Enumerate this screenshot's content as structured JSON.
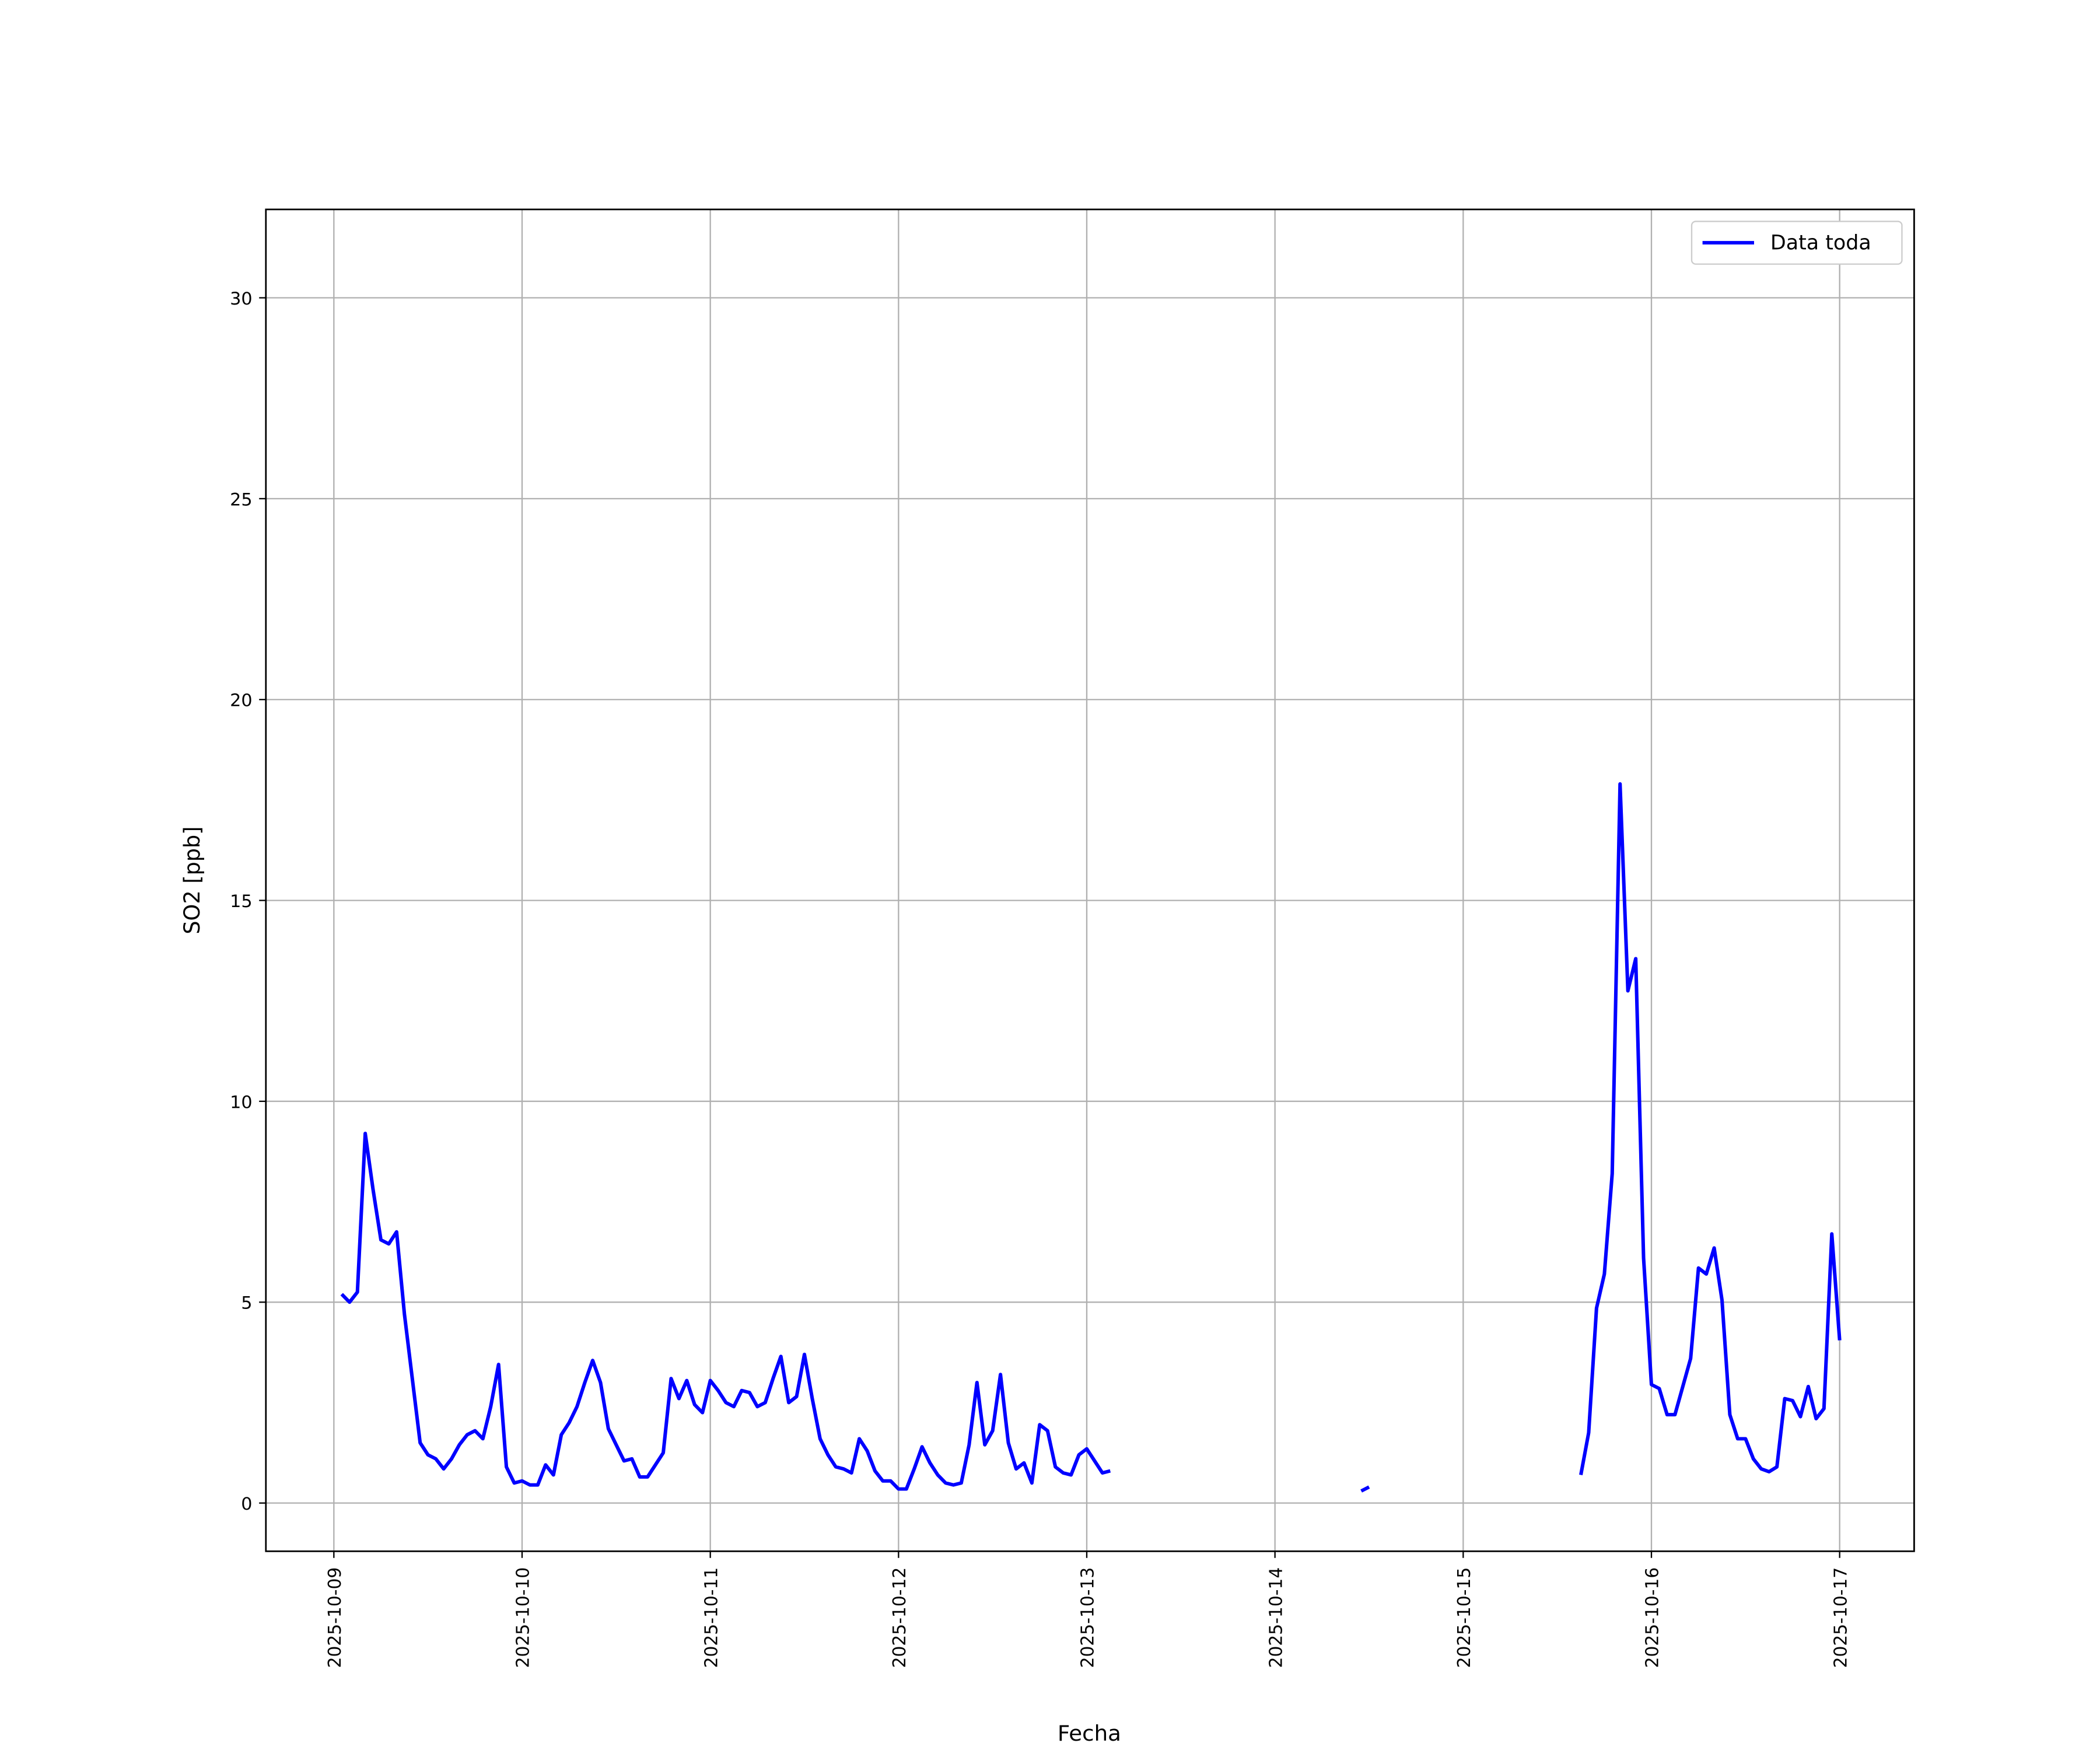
{
  "chart_data": {
    "type": "line",
    "xlabel": "Fecha",
    "ylabel": "SO2 [ppb]",
    "x": [
      "2025-10-09 01:00",
      "2025-10-09 02:00",
      "2025-10-09 03:00",
      "2025-10-09 04:00",
      "2025-10-09 05:00",
      "2025-10-09 06:00",
      "2025-10-09 07:00",
      "2025-10-09 08:00",
      "2025-10-09 09:00",
      "2025-10-09 10:00",
      "2025-10-09 11:00",
      "2025-10-09 12:00",
      "2025-10-09 13:00",
      "2025-10-09 14:00",
      "2025-10-09 15:00",
      "2025-10-09 16:00",
      "2025-10-09 17:00",
      "2025-10-09 18:00",
      "2025-10-09 19:00",
      "2025-10-09 20:00",
      "2025-10-09 21:00",
      "2025-10-09 22:00",
      "2025-10-09 23:00",
      "2025-10-10 00:00",
      "2025-10-10 01:00",
      "2025-10-10 02:00",
      "2025-10-10 03:00",
      "2025-10-10 04:00",
      "2025-10-10 05:00",
      "2025-10-10 06:00",
      "2025-10-10 07:00",
      "2025-10-10 08:00",
      "2025-10-10 09:00",
      "2025-10-10 10:00",
      "2025-10-10 11:00",
      "2025-10-10 12:00",
      "2025-10-10 13:00",
      "2025-10-10 14:00",
      "2025-10-10 15:00",
      "2025-10-10 16:00",
      "2025-10-10 17:00",
      "2025-10-10 18:00",
      "2025-10-10 19:00",
      "2025-10-10 20:00",
      "2025-10-10 21:00",
      "2025-10-10 22:00",
      "2025-10-10 23:00",
      "2025-10-11 00:00",
      "2025-10-11 01:00",
      "2025-10-11 02:00",
      "2025-10-11 03:00",
      "2025-10-11 04:00",
      "2025-10-11 05:00",
      "2025-10-11 06:00",
      "2025-10-11 07:00",
      "2025-10-11 08:00",
      "2025-10-11 09:00",
      "2025-10-11 10:00",
      "2025-10-11 11:00",
      "2025-10-11 12:00",
      "2025-10-11 13:00",
      "2025-10-11 14:00",
      "2025-10-11 15:00",
      "2025-10-11 16:00",
      "2025-10-11 17:00",
      "2025-10-11 18:00",
      "2025-10-11 19:00",
      "2025-10-11 20:00",
      "2025-10-11 21:00",
      "2025-10-11 22:00",
      "2025-10-11 23:00",
      "2025-10-12 00:00",
      "2025-10-12 01:00",
      "2025-10-12 02:00",
      "2025-10-12 03:00",
      "2025-10-12 04:00",
      "2025-10-12 05:00",
      "2025-10-12 06:00",
      "2025-10-12 07:00",
      "2025-10-12 08:00",
      "2025-10-12 09:00",
      "2025-10-12 10:00",
      "2025-10-12 11:00",
      "2025-10-12 12:00",
      "2025-10-12 13:00",
      "2025-10-12 14:00",
      "2025-10-12 15:00",
      "2025-10-12 16:00",
      "2025-10-12 17:00",
      "2025-10-12 18:00",
      "2025-10-12 19:00",
      "2025-10-12 20:00",
      "2025-10-12 21:00",
      "2025-10-12 22:00",
      "2025-10-12 23:00",
      "2025-10-13 00:00",
      "2025-10-13 01:00",
      "2025-10-13 02:00",
      "2025-10-13 03:00",
      "2025-10-14 00:00",
      "2025-10-14 11:00",
      "2025-10-14 12:00",
      "2025-10-15 00:00",
      "2025-10-15 15:00",
      "2025-10-15 16:00",
      "2025-10-15 17:00",
      "2025-10-15 18:00",
      "2025-10-15 19:00",
      "2025-10-15 20:00",
      "2025-10-15 21:00",
      "2025-10-15 22:00",
      "2025-10-15 23:00",
      "2025-10-16 00:00",
      "2025-10-16 01:00",
      "2025-10-16 02:00",
      "2025-10-16 03:00",
      "2025-10-16 04:00",
      "2025-10-16 05:00",
      "2025-10-16 06:00",
      "2025-10-16 07:00",
      "2025-10-16 08:00",
      "2025-10-16 09:00",
      "2025-10-16 10:00",
      "2025-10-16 11:00",
      "2025-10-16 12:00",
      "2025-10-16 13:00",
      "2025-10-16 14:00",
      "2025-10-16 15:00",
      "2025-10-16 16:00",
      "2025-10-16 17:00",
      "2025-10-16 18:00",
      "2025-10-16 19:00",
      "2025-10-16 20:00",
      "2025-10-16 21:00",
      "2025-10-16 22:00",
      "2025-10-16 23:00",
      "2025-10-17 00:00"
    ],
    "series": [
      {
        "name": "Data toda",
        "color": "#0000ff",
        "values": [
          5.2,
          5.0,
          5.25,
          9.2,
          7.8,
          6.55,
          6.45,
          6.75,
          4.7,
          3.1,
          1.5,
          1.2,
          1.1,
          0.85,
          1.1,
          1.45,
          1.7,
          1.8,
          1.6,
          2.4,
          3.45,
          0.9,
          0.5,
          0.55,
          0.45,
          0.45,
          0.95,
          0.7,
          1.7,
          2.0,
          2.4,
          3.0,
          3.55,
          3.0,
          1.85,
          1.45,
          1.05,
          1.1,
          0.65,
          0.65,
          0.95,
          1.25,
          3.1,
          2.6,
          3.05,
          2.45,
          2.25,
          3.05,
          2.8,
          2.5,
          2.4,
          2.8,
          2.75,
          2.4,
          2.5,
          3.1,
          3.65,
          2.5,
          2.65,
          3.7,
          2.6,
          1.6,
          1.2,
          0.9,
          0.85,
          0.75,
          1.6,
          1.3,
          0.8,
          0.55,
          0.55,
          0.35,
          0.35,
          0.85,
          1.4,
          1.0,
          0.7,
          0.5,
          0.45,
          0.5,
          1.45,
          3.0,
          1.45,
          1.8,
          3.2,
          1.5,
          0.85,
          1.0,
          0.5,
          1.95,
          1.8,
          0.9,
          0.75,
          0.7,
          1.2,
          1.35,
          1.05,
          0.75,
          0.8,
          null,
          0.3,
          0.4,
          null,
          0.7,
          1.75,
          4.85,
          5.7,
          8.2,
          17.9,
          12.75,
          13.55,
          6.1,
          2.95,
          2.85,
          2.2,
          2.2,
          2.9,
          3.6,
          5.85,
          5.7,
          6.35,
          5.05,
          2.2,
          1.6,
          1.6,
          1.1,
          0.85,
          0.78,
          0.9,
          2.6,
          2.55,
          2.15,
          2.9,
          2.1,
          2.35,
          6.7,
          4.05
        ]
      }
    ],
    "xlim": [
      "2025-10-08 15:20",
      "2025-10-17 09:30"
    ],
    "xticks": [
      "2025-10-09",
      "2025-10-10",
      "2025-10-11",
      "2025-10-12",
      "2025-10-13",
      "2025-10-14",
      "2025-10-15",
      "2025-10-16",
      "2025-10-17"
    ],
    "ylim": [
      -1.2,
      32.2
    ],
    "yticks": [
      0,
      5,
      10,
      15,
      20,
      25,
      30
    ],
    "grid": true,
    "legend": "upper right"
  }
}
